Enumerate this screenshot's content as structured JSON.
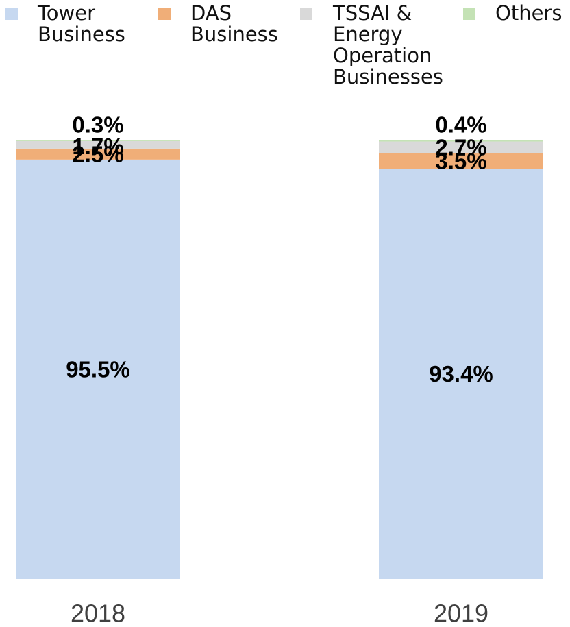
{
  "chart_data": {
    "type": "bar",
    "stacked": true,
    "categories": [
      "2018",
      "2019"
    ],
    "series": [
      {
        "name": "Tower Business",
        "label_lines": [
          "Tower",
          "Business"
        ],
        "color": "#c6d8f0",
        "values": [
          95.5,
          93.4
        ],
        "labels": [
          "95.5%",
          "93.4%"
        ]
      },
      {
        "name": "DAS Business",
        "label_lines": [
          "DAS",
          "Business"
        ],
        "color": "#f0ae78",
        "values": [
          2.5,
          3.5
        ],
        "labels": [
          "2.5%",
          "3.5%"
        ]
      },
      {
        "name": "TSSAI & Energy Operation Businesses",
        "label_lines": [
          "TSSAI &",
          "Energy",
          "Operation",
          "Businesses"
        ],
        "color": "#d9d9d9",
        "values": [
          1.7,
          2.7
        ],
        "labels": [
          "1.7%",
          "2.7%"
        ]
      },
      {
        "name": "Others",
        "label_lines": [
          "Others"
        ],
        "color": "#c4e2b5",
        "values": [
          0.3,
          0.4
        ],
        "labels": [
          "0.3%",
          "0.4%"
        ]
      }
    ],
    "title": "",
    "xlabel": "",
    "ylabel": "",
    "ylim": [
      0,
      100
    ],
    "legend_position": "top",
    "grid": false
  }
}
